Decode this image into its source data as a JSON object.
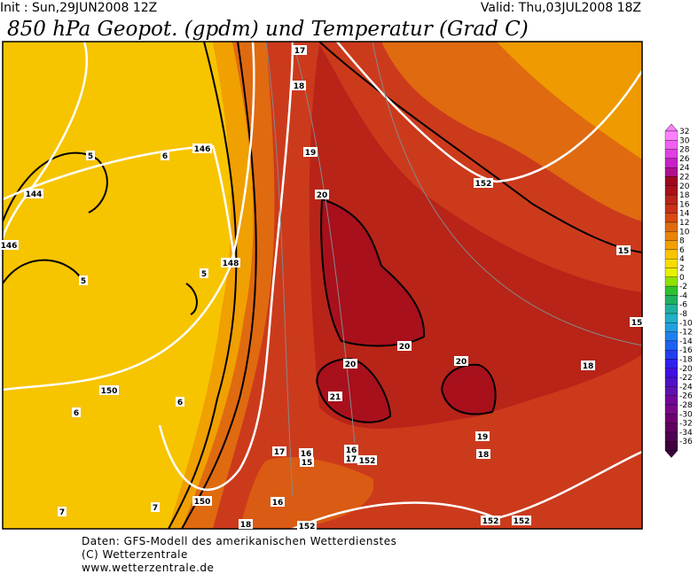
{
  "header": {
    "init": "Init : Sun,29JUN2008 12Z",
    "valid": "Valid: Thu,03JUL2008 18Z",
    "title": "850 hPa Geopot. (gpdm) und Temperatur (Grad C)"
  },
  "colorbar": {
    "labels": [
      "32",
      "30",
      "28",
      "26",
      "24",
      "22",
      "20",
      "18",
      "16",
      "14",
      "12",
      "10",
      "8",
      "6",
      "4",
      "2",
      "0",
      "-2",
      "-4",
      "-6",
      "-8",
      "-10",
      "-12",
      "-14",
      "-16",
      "-18",
      "-20",
      "-22",
      "-24",
      "-26",
      "-28",
      "-30",
      "-32",
      "-34",
      "-36"
    ]
  },
  "map": {
    "labels": [
      "17",
      "18",
      "19",
      "20",
      "20",
      "20",
      "21",
      "20",
      "19",
      "18",
      "18",
      "15",
      "15",
      "152",
      "146",
      "144",
      "146",
      "148",
      "150",
      "150",
      "5",
      "6",
      "5",
      "5",
      "6",
      "6",
      "7",
      "7",
      "17",
      "16",
      "15",
      "16",
      "17",
      "152",
      "16",
      "18",
      "152",
      "152",
      "152"
    ]
  },
  "footer": {
    "lines": [
      "Daten: GFS-Modell des amerikanischen Wetterdienstes",
      "(C) Wetterzentrale",
      "www.wetterzentrale.de"
    ]
  }
}
